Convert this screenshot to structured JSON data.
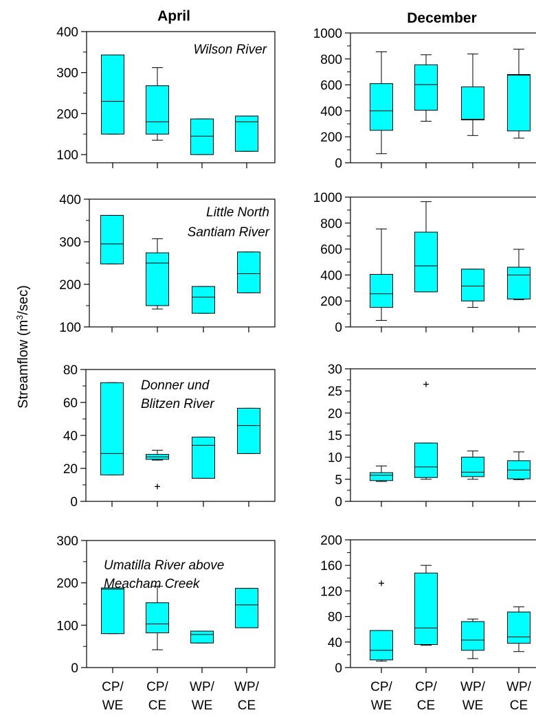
{
  "figure": {
    "column_titles": [
      "April",
      "December"
    ],
    "ylabel_main": "Streamflow (m",
    "ylabel_sup": "3",
    "ylabel_tail": "/sec)",
    "box_color": "#00ffff",
    "line_color": "#000000"
  },
  "chart_data": [
    {
      "type": "box",
      "month": "April",
      "title_lines": [
        "Wilson River"
      ],
      "ylim": [
        80,
        400
      ],
      "yticks": [
        100,
        200,
        300,
        400
      ],
      "categories": [],
      "boxes": [
        {
          "whisker_low": 150,
          "q1": 150,
          "median": 230,
          "q3": 343,
          "whisker_high": 343
        },
        {
          "whisker_low": 135,
          "q1": 150,
          "median": 180,
          "q3": 268,
          "whisker_high": 312
        },
        {
          "whisker_low": 100,
          "q1": 100,
          "median": 145,
          "q3": 187,
          "whisker_high": 187
        },
        {
          "whisker_low": 108,
          "q1": 108,
          "median": 180,
          "q3": 194,
          "whisker_high": 194
        }
      ]
    },
    {
      "type": "box",
      "month": "December",
      "title_lines": [],
      "ylim": [
        0,
        1000
      ],
      "yticks": [
        0,
        200,
        400,
        600,
        800,
        1000
      ],
      "categories": [],
      "boxes": [
        {
          "whisker_low": 70,
          "q1": 250,
          "median": 400,
          "q3": 610,
          "whisker_high": 855
        },
        {
          "whisker_low": 320,
          "q1": 405,
          "median": 602,
          "q3": 755,
          "whisker_high": 832
        },
        {
          "whisker_low": 210,
          "q1": 330,
          "median": 335,
          "q3": 585,
          "whisker_high": 838
        },
        {
          "whisker_low": 190,
          "q1": 245,
          "median": 675,
          "q3": 680,
          "whisker_high": 875
        }
      ]
    },
    {
      "type": "box",
      "month": "April",
      "title_lines": [
        "Little North",
        "Santiam River"
      ],
      "ylim": [
        100,
        400
      ],
      "yticks": [
        100,
        200,
        300,
        400
      ],
      "categories": [],
      "boxes": [
        {
          "whisker_low": 248,
          "q1": 248,
          "median": 295,
          "q3": 362,
          "whisker_high": 362
        },
        {
          "whisker_low": 142,
          "q1": 150,
          "median": 250,
          "q3": 274,
          "whisker_high": 307
        },
        {
          "whisker_low": 132,
          "q1": 132,
          "median": 170,
          "q3": 195,
          "whisker_high": 195
        },
        {
          "whisker_low": 180,
          "q1": 180,
          "median": 225,
          "q3": 276,
          "whisker_high": 276
        }
      ]
    },
    {
      "type": "box",
      "month": "December",
      "title_lines": [],
      "ylim": [
        0,
        1000
      ],
      "yticks": [
        0,
        200,
        400,
        600,
        800,
        1000
      ],
      "categories": [],
      "boxes": [
        {
          "whisker_low": 50,
          "q1": 150,
          "median": 255,
          "q3": 405,
          "whisker_high": 755
        },
        {
          "whisker_low": 270,
          "q1": 270,
          "median": 470,
          "q3": 730,
          "whisker_high": 965
        },
        {
          "whisker_low": 150,
          "q1": 200,
          "median": 315,
          "q3": 445,
          "whisker_high": 445
        },
        {
          "whisker_low": 210,
          "q1": 215,
          "median": 400,
          "q3": 460,
          "whisker_high": 598
        }
      ]
    },
    {
      "type": "box",
      "month": "April",
      "title_lines": [
        "Donner und",
        "Blitzen River"
      ],
      "ylim": [
        0,
        80
      ],
      "yticks": [
        0,
        20,
        40,
        60,
        80
      ],
      "categories": [],
      "boxes": [
        {
          "whisker_low": 16,
          "q1": 16,
          "median": 29,
          "q3": 72,
          "whisker_high": 72
        },
        {
          "whisker_low": 25,
          "q1": 25.5,
          "median": 27,
          "q3": 28.5,
          "whisker_high": 31,
          "outliers": [
            9
          ]
        },
        {
          "whisker_low": 14,
          "q1": 14,
          "median": 34,
          "q3": 39,
          "whisker_high": 39
        },
        {
          "whisker_low": 29,
          "q1": 29,
          "median": 46,
          "q3": 56.5,
          "whisker_high": 56.5
        }
      ]
    },
    {
      "type": "box",
      "month": "December",
      "title_lines": [],
      "ylim": [
        0,
        30
      ],
      "yticks": [
        0,
        5,
        10,
        15,
        20,
        25,
        30
      ],
      "categories": [],
      "boxes": [
        {
          "whisker_low": 4.5,
          "q1": 4.7,
          "median": 5.9,
          "q3": 6.5,
          "whisker_high": 8
        },
        {
          "whisker_low": 5,
          "q1": 5.4,
          "median": 7.8,
          "q3": 13.2,
          "whisker_high": 13.2,
          "outliers": [
            26.5
          ]
        },
        {
          "whisker_low": 5,
          "q1": 5.6,
          "median": 6.6,
          "q3": 10,
          "whisker_high": 11.4
        },
        {
          "whisker_low": 4.9,
          "q1": 5.1,
          "median": 7.1,
          "q3": 9.2,
          "whisker_high": 11.2
        }
      ]
    },
    {
      "type": "box",
      "month": "April",
      "title_lines": [
        "Umatilla River above",
        "Meacham Creek"
      ],
      "ylim": [
        0,
        300
      ],
      "yticks": [
        0,
        100,
        200,
        300
      ],
      "categories": [
        "CP/\nWE",
        "CP/\nCE",
        "WP/\nWE",
        "WP/\nCE"
      ],
      "boxes": [
        {
          "whisker_low": 80,
          "q1": 80,
          "median": 185,
          "q3": 188,
          "whisker_high": 188
        },
        {
          "whisker_low": 42,
          "q1": 82,
          "median": 103,
          "q3": 153,
          "whisker_high": 192
        },
        {
          "whisker_low": 58,
          "q1": 58,
          "median": 78,
          "q3": 86,
          "whisker_high": 86
        },
        {
          "whisker_low": 94,
          "q1": 94,
          "median": 148,
          "q3": 187,
          "whisker_high": 187
        }
      ]
    },
    {
      "type": "box",
      "month": "December",
      "title_lines": [],
      "ylim": [
        0,
        200
      ],
      "yticks": [
        0,
        40,
        80,
        120,
        160,
        200
      ],
      "categories": [
        "CP/\nWE",
        "CP/\nCE",
        "WP/\nWE",
        "WP/\nCE"
      ],
      "boxes": [
        {
          "whisker_low": 10,
          "q1": 12,
          "median": 27,
          "q3": 58,
          "whisker_high": 58,
          "outliers": [
            132
          ]
        },
        {
          "whisker_low": 35,
          "q1": 36,
          "median": 62,
          "q3": 148,
          "whisker_high": 160
        },
        {
          "whisker_low": 14,
          "q1": 27,
          "median": 43,
          "q3": 72,
          "whisker_high": 76
        },
        {
          "whisker_low": 25,
          "q1": 38,
          "median": 48,
          "q3": 87,
          "whisker_high": 95
        }
      ]
    }
  ]
}
